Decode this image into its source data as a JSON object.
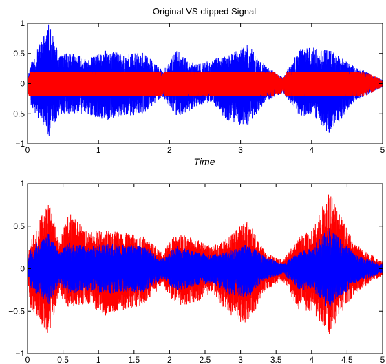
{
  "figure": {
    "background": "#ffffff"
  },
  "chart_data": [
    {
      "type": "line",
      "title": "Original  VS clipped Signal",
      "xlabel": "Time",
      "ylabel": "",
      "xlim": [
        0,
        5
      ],
      "ylim": [
        -1,
        1
      ],
      "x_ticks": [
        0,
        1,
        2,
        3,
        4,
        5
      ],
      "x_tick_labels": [
        "0",
        "1",
        "2",
        "3",
        "4",
        "5"
      ],
      "y_ticks": [
        -1,
        -0.5,
        0,
        0.5,
        1
      ],
      "y_tick_labels": [
        "−1",
        "−0.5",
        "0",
        "0.5",
        "1"
      ],
      "grid": false,
      "legend": "none",
      "onset_times": [
        0.04,
        0.3,
        0.57,
        0.83,
        1.1,
        1.37,
        1.63,
        1.9,
        2.1,
        2.37,
        2.6,
        2.83,
        3.1,
        3.35,
        3.6,
        3.83,
        4.25,
        4.6
      ],
      "series": [
        {
          "color": "#0000ff",
          "envelope": {
            "x": [
              0,
              0.04,
              0.3,
              0.45,
              0.57,
              0.83,
              1.1,
              1.37,
              1.63,
              1.9,
              2.1,
              2.37,
              2.6,
              2.83,
              3.1,
              3.35,
              3.6,
              3.83,
              4.0,
              4.25,
              4.6,
              5.0
            ],
            "y_max": [
              0.1,
              0.32,
              1.0,
              0.45,
              0.55,
              0.4,
              0.55,
              0.5,
              0.52,
              0.22,
              0.55,
              0.32,
              0.4,
              0.47,
              0.66,
              0.3,
              0.1,
              0.57,
              0.6,
              0.56,
              0.3,
              0.06
            ],
            "y_min": [
              -0.1,
              -0.35,
              -0.88,
              -0.5,
              -0.5,
              -0.5,
              -0.62,
              -0.55,
              -0.5,
              -0.22,
              -0.55,
              -0.4,
              -0.3,
              -0.65,
              -0.7,
              -0.3,
              -0.15,
              -0.55,
              -0.5,
              -0.85,
              -0.3,
              -0.06
            ]
          }
        },
        {
          "color": "#ff0000",
          "clip_level": 0.2
        }
      ]
    },
    {
      "type": "line",
      "title": "",
      "xlabel": "",
      "ylabel": "",
      "xlim": [
        0,
        5
      ],
      "ylim": [
        -1,
        1
      ],
      "x_ticks": [
        0,
        0.5,
        1,
        1.5,
        2,
        2.5,
        3,
        3.5,
        4,
        4.5,
        5
      ],
      "x_tick_labels": [
        "0",
        "0.5",
        "1",
        "1.5",
        "2",
        "2.5",
        "3",
        "3.5",
        "4",
        "4.5",
        "5"
      ],
      "y_ticks": [
        -1,
        -0.5,
        0,
        0.5,
        1
      ],
      "y_tick_labels": [
        "−1",
        "−0.5",
        "0",
        "0.5",
        "1"
      ],
      "grid": false,
      "legend": "none",
      "series": [
        {
          "color": "#ff0000",
          "envelope": {
            "x": [
              0,
              0.04,
              0.3,
              0.45,
              0.57,
              0.83,
              1.1,
              1.37,
              1.63,
              1.9,
              2.1,
              2.37,
              2.6,
              2.83,
              3.1,
              3.35,
              3.6,
              3.83,
              4.0,
              4.25,
              4.6,
              5.0
            ],
            "y_max": [
              0.1,
              0.38,
              0.8,
              0.3,
              0.68,
              0.45,
              0.45,
              0.43,
              0.38,
              0.2,
              0.42,
              0.35,
              0.27,
              0.37,
              0.58,
              0.2,
              0.1,
              0.4,
              0.45,
              0.9,
              0.3,
              0.08
            ],
            "y_min": [
              -0.12,
              -0.45,
              -0.78,
              -0.3,
              -0.45,
              -0.42,
              -0.55,
              -0.5,
              -0.42,
              -0.2,
              -0.45,
              -0.4,
              -0.3,
              -0.55,
              -0.68,
              -0.25,
              -0.15,
              -0.5,
              -0.5,
              -0.78,
              -0.3,
              -0.08
            ]
          }
        },
        {
          "color": "#0000ff",
          "envelope": {
            "x": [
              0,
              0.04,
              0.3,
              0.45,
              0.57,
              0.83,
              1.1,
              1.37,
              1.63,
              1.9,
              2.1,
              2.37,
              2.6,
              2.83,
              3.1,
              3.35,
              3.6,
              3.83,
              4.0,
              4.25,
              4.6,
              5.0
            ],
            "y_max": [
              0.06,
              0.24,
              0.42,
              0.18,
              0.32,
              0.26,
              0.3,
              0.28,
              0.28,
              0.12,
              0.27,
              0.2,
              0.17,
              0.2,
              0.3,
              0.14,
              0.06,
              0.2,
              0.25,
              0.48,
              0.18,
              0.05
            ],
            "y_min": [
              -0.06,
              -0.24,
              -0.42,
              -0.18,
              -0.3,
              -0.26,
              -0.3,
              -0.28,
              -0.28,
              -0.12,
              -0.27,
              -0.2,
              -0.17,
              -0.3,
              -0.34,
              -0.14,
              -0.06,
              -0.26,
              -0.25,
              -0.5,
              -0.18,
              -0.05
            ]
          }
        }
      ]
    }
  ]
}
